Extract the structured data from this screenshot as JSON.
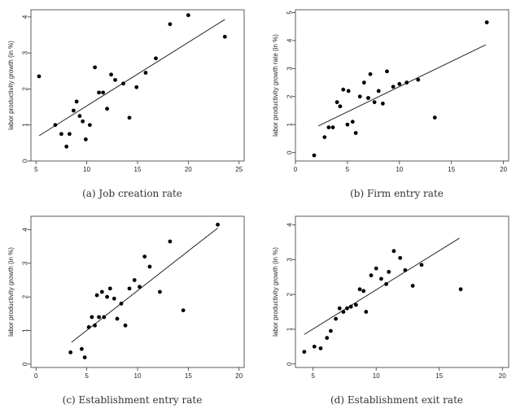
{
  "chart_data": [
    {
      "type": "scatter",
      "caption": "(a) Job creation rate",
      "xlabel": "job creation rate (in %)",
      "ylabel": "labor productivity growth (in %)",
      "xlim": [
        4.5,
        25.5
      ],
      "ylim": [
        0,
        4.2
      ],
      "xticks": [
        5,
        10,
        15,
        20,
        25
      ],
      "yticks": [
        0,
        1,
        2,
        3,
        4
      ],
      "points": [
        [
          5.3,
          2.35
        ],
        [
          6.9,
          1.0
        ],
        [
          7.5,
          0.75
        ],
        [
          8.0,
          0.4
        ],
        [
          8.3,
          0.75
        ],
        [
          8.7,
          1.4
        ],
        [
          9.0,
          1.65
        ],
        [
          9.3,
          1.25
        ],
        [
          9.6,
          1.1
        ],
        [
          9.9,
          0.6
        ],
        [
          10.3,
          1.0
        ],
        [
          10.8,
          2.6
        ],
        [
          11.2,
          1.9
        ],
        [
          11.6,
          1.9
        ],
        [
          12.0,
          1.45
        ],
        [
          12.4,
          2.4
        ],
        [
          12.8,
          2.25
        ],
        [
          13.6,
          2.15
        ],
        [
          14.2,
          1.2
        ],
        [
          14.9,
          2.05
        ],
        [
          15.8,
          2.45
        ],
        [
          16.8,
          2.85
        ],
        [
          18.2,
          3.8
        ],
        [
          20.0,
          4.05
        ],
        [
          23.6,
          3.45
        ]
      ],
      "fit_line": {
        "x": [
          5.3,
          23.6
        ],
        "y": [
          0.7,
          3.93
        ]
      }
    },
    {
      "type": "scatter",
      "caption": "(b) Firm entry rate",
      "xlabel": "firm entry rate (in %)",
      "ylabel": "labor productivity growth rate (in %)",
      "xlim": [
        0,
        20.5
      ],
      "ylim": [
        -0.3,
        5.1
      ],
      "xticks": [
        0,
        5,
        10,
        15,
        20
      ],
      "yticks": [
        0,
        1,
        2,
        3,
        4,
        5
      ],
      "points": [
        [
          1.8,
          -0.1
        ],
        [
          2.8,
          0.55
        ],
        [
          3.2,
          0.9
        ],
        [
          3.6,
          0.9
        ],
        [
          4.0,
          1.8
        ],
        [
          4.3,
          1.65
        ],
        [
          4.6,
          2.25
        ],
        [
          5.0,
          1.0
        ],
        [
          5.1,
          2.2
        ],
        [
          5.5,
          1.1
        ],
        [
          5.8,
          0.7
        ],
        [
          6.2,
          2.0
        ],
        [
          6.6,
          2.5
        ],
        [
          7.0,
          1.95
        ],
        [
          7.2,
          2.8
        ],
        [
          7.6,
          1.8
        ],
        [
          8.0,
          2.2
        ],
        [
          8.4,
          1.75
        ],
        [
          8.8,
          2.9
        ],
        [
          9.4,
          2.35
        ],
        [
          10.0,
          2.45
        ],
        [
          10.7,
          2.5
        ],
        [
          11.8,
          2.6
        ],
        [
          13.4,
          1.25
        ],
        [
          18.4,
          4.65
        ]
      ],
      "fit_line": {
        "x": [
          2.2,
          18.3
        ],
        "y": [
          0.95,
          3.85
        ]
      }
    },
    {
      "type": "scatter",
      "caption": "(c) Establishment entry rate",
      "xlabel": "establishment entry rate (in %)",
      "ylabel": "labor productivity growth (in %)",
      "xlim": [
        -0.5,
        20.5
      ],
      "ylim": [
        -0.1,
        4.4
      ],
      "xticks": [
        0,
        5,
        10,
        15,
        20
      ],
      "yticks": [
        0,
        1,
        2,
        3,
        4
      ],
      "points": [
        [
          3.4,
          0.35
        ],
        [
          4.5,
          0.45
        ],
        [
          4.8,
          0.2
        ],
        [
          5.2,
          1.1
        ],
        [
          5.5,
          1.4
        ],
        [
          5.8,
          1.15
        ],
        [
          6.0,
          2.05
        ],
        [
          6.2,
          1.4
        ],
        [
          6.5,
          2.15
        ],
        [
          6.7,
          1.4
        ],
        [
          7.0,
          2.0
        ],
        [
          7.3,
          2.25
        ],
        [
          7.7,
          1.95
        ],
        [
          8.0,
          1.35
        ],
        [
          8.4,
          1.8
        ],
        [
          8.8,
          1.15
        ],
        [
          9.2,
          2.25
        ],
        [
          9.7,
          2.5
        ],
        [
          10.2,
          2.3
        ],
        [
          10.7,
          3.2
        ],
        [
          11.2,
          2.9
        ],
        [
          12.2,
          2.15
        ],
        [
          13.2,
          3.65
        ],
        [
          14.5,
          1.6
        ],
        [
          17.9,
          4.15
        ]
      ],
      "fit_line": {
        "x": [
          3.5,
          17.9
        ],
        "y": [
          0.65,
          4.05
        ]
      }
    },
    {
      "type": "scatter",
      "caption": "(d) Establishment exit rate",
      "xlabel": "establishment exit rate (in %)",
      "ylabel": "labor productivity growth (in %)",
      "xlim": [
        3.6,
        20.5
      ],
      "ylim": [
        -0.1,
        4.25
      ],
      "xticks": [
        5,
        10,
        15,
        20
      ],
      "yticks": [
        0,
        1,
        2,
        3,
        4
      ],
      "points": [
        [
          4.3,
          0.35
        ],
        [
          5.1,
          0.5
        ],
        [
          5.6,
          0.45
        ],
        [
          6.1,
          0.75
        ],
        [
          6.4,
          0.95
        ],
        [
          6.8,
          1.3
        ],
        [
          7.1,
          1.6
        ],
        [
          7.4,
          1.5
        ],
        [
          7.7,
          1.6
        ],
        [
          8.0,
          1.65
        ],
        [
          8.4,
          1.7
        ],
        [
          8.7,
          2.15
        ],
        [
          9.0,
          2.1
        ],
        [
          9.2,
          1.5
        ],
        [
          9.6,
          2.55
        ],
        [
          10.0,
          2.75
        ],
        [
          10.4,
          2.45
        ],
        [
          10.8,
          2.3
        ],
        [
          11.0,
          2.65
        ],
        [
          11.4,
          3.25
        ],
        [
          11.9,
          3.05
        ],
        [
          12.3,
          2.7
        ],
        [
          12.9,
          2.25
        ],
        [
          13.6,
          2.85
        ],
        [
          16.7,
          2.15
        ]
      ],
      "fit_line": {
        "x": [
          4.3,
          16.6
        ],
        "y": [
          0.85,
          3.62
        ]
      }
    }
  ]
}
